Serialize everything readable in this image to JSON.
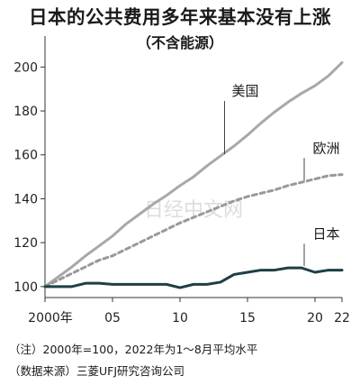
{
  "title": "日本的公共费用多年来基本没有上涨",
  "subtitle": "（不含能源）",
  "watermark": "日经中文网",
  "notes": [
    "（注）2000年=100，2022年为1～8月平均水平",
    "（数据来源）三菱UFJ研究咨询公司"
  ],
  "chart_data": {
    "type": "line",
    "title": "日本的公共费用多年来基本没有上涨",
    "subtitle": "（不含能源）",
    "xlabel": "",
    "ylabel": "",
    "x": [
      2000,
      2001,
      2002,
      2003,
      2004,
      2005,
      2006,
      2007,
      2008,
      2009,
      2010,
      2011,
      2012,
      2013,
      2014,
      2015,
      2016,
      2017,
      2018,
      2019,
      2020,
      2021,
      2022
    ],
    "x_ticks": [
      2000,
      2005,
      2010,
      2015,
      2020,
      2022
    ],
    "x_tick_labels": [
      "2000年",
      "05",
      "10",
      "15",
      "20",
      "22"
    ],
    "ylim": [
      95,
      210
    ],
    "y_ticks": [
      100,
      120,
      140,
      160,
      180,
      200
    ],
    "y_tick_labels": [
      "100",
      "120",
      "140",
      "160",
      "180",
      "200"
    ],
    "grid": false,
    "series": [
      {
        "name": "美国",
        "label_x": 2013.5,
        "label_y": 187,
        "leader_to_x": 2013.3,
        "color": "#a8a8a8",
        "dash": "none",
        "width": 3,
        "values": [
          100,
          104.5,
          109,
          114,
          118.5,
          123,
          128.5,
          133,
          137.5,
          141.5,
          146,
          150,
          155,
          159.5,
          164,
          169,
          174.5,
          179.5,
          184,
          188,
          191.5,
          196,
          202
        ]
      },
      {
        "name": "欧洲",
        "label_x": 2019.5,
        "label_y": 161,
        "leader_to_x": 2019.2,
        "color": "#999999",
        "dash": "5,4",
        "width": 3,
        "values": [
          100,
          103,
          106,
          109,
          112,
          114,
          117,
          120,
          123,
          126,
          129,
          131.5,
          134,
          136.5,
          139,
          141,
          142.5,
          144,
          146,
          147.5,
          149,
          150.5,
          151
        ]
      },
      {
        "name": "日本",
        "label_x": 2019.5,
        "label_y": 122,
        "leader_to_x": 2019.2,
        "color": "#1e3f45",
        "dash": "none",
        "width": 3,
        "values": [
          100,
          100,
          100,
          101.5,
          101.5,
          101,
          101,
          101,
          101,
          101,
          99.5,
          101,
          101,
          102,
          105.5,
          106.5,
          107.5,
          107.5,
          108.5,
          108.5,
          106.5,
          107.5,
          107.5
        ]
      }
    ]
  }
}
